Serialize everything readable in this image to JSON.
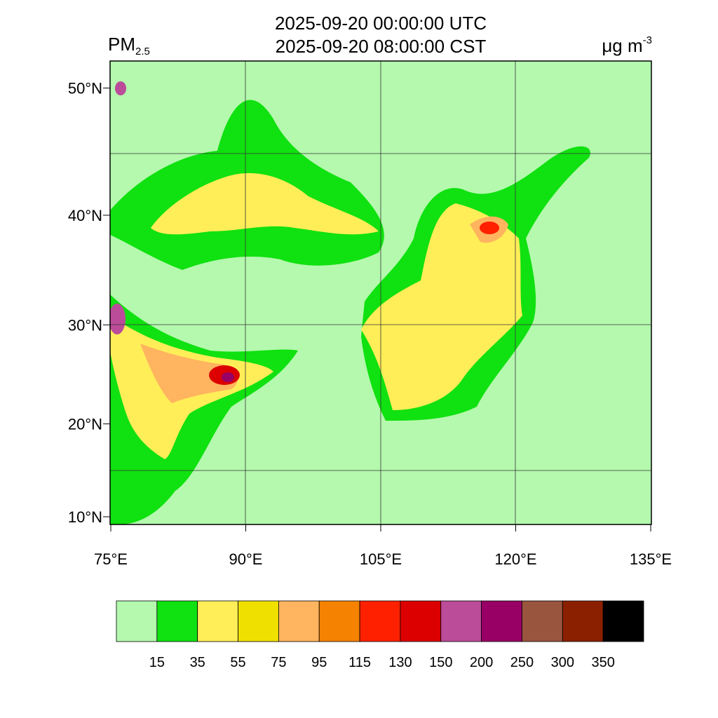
{
  "title": {
    "utc": "2025-09-20 00:00:00 UTC",
    "cst": "2025-09-20 08:00:00 CST"
  },
  "variable": {
    "name": "PM",
    "subscript": "2.5"
  },
  "units": {
    "text": "μg m",
    "superscript": "-3"
  },
  "map": {
    "lon_ticks": [
      {
        "value": 75,
        "label": "75°E"
      },
      {
        "value": 90,
        "label": "90°E"
      },
      {
        "value": 105,
        "label": "105°E"
      },
      {
        "value": 120,
        "label": "120°E"
      },
      {
        "value": 135,
        "label": "135°E"
      }
    ],
    "lat_ticks": [
      {
        "value": 50,
        "label": "50°N"
      },
      {
        "value": 40,
        "label": "40°N"
      },
      {
        "value": 30,
        "label": "30°N"
      },
      {
        "value": 20,
        "label": "20°N"
      },
      {
        "value": 10,
        "label": "10°N"
      }
    ]
  },
  "colorbar": {
    "colors": [
      "#b4f9ae",
      "#10e110",
      "#ffee58",
      "#f0e000",
      "#ffb45f",
      "#f58200",
      "#ff2000",
      "#dc0000",
      "#bb4c99",
      "#990066",
      "#9a553f",
      "#8b2000",
      "#000000"
    ],
    "levels": [
      15,
      35,
      55,
      75,
      95,
      115,
      130,
      150,
      200,
      250,
      300,
      350
    ]
  }
}
